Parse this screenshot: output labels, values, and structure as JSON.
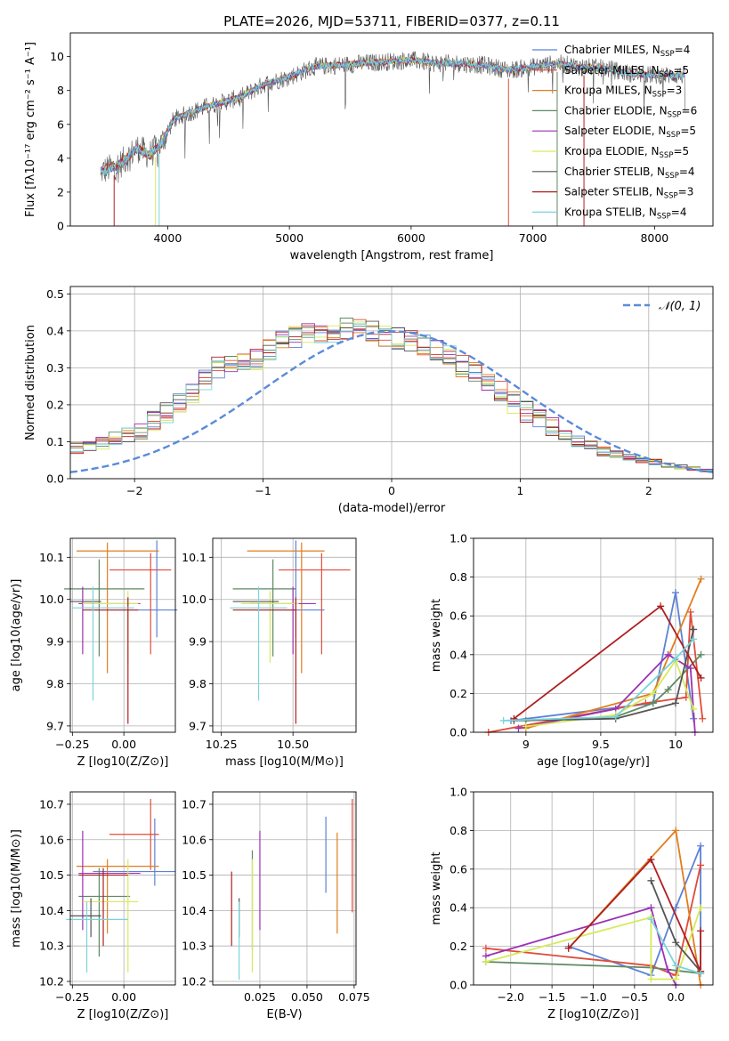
{
  "figure": {
    "title": "PLATE=2026, MJD=53711, FIBERID=0377, z=0.11"
  },
  "chart_data": [
    {
      "id": "spectrum",
      "type": "line",
      "xlabel": "wavelength [Angstrom, rest frame]",
      "ylabel": "Flux [fλ10⁻¹⁷ erg cm⁻² s⁻¹ A⁻¹]",
      "xlim": [
        3200,
        8480
      ],
      "ylim": [
        0,
        11.4
      ],
      "xticks": [
        4000,
        5000,
        6000,
        7000,
        8000
      ],
      "yticks": [
        0,
        2,
        4,
        6,
        8,
        10
      ],
      "grid": false,
      "legend_position": "top-right",
      "spectrum_envelope": {
        "x": [
          3450,
          3600,
          3750,
          3850,
          3950,
          4050,
          4150,
          4300,
          4450,
          4600,
          4800,
          5000,
          5200,
          5400,
          5600,
          5800,
          6000,
          6200,
          6400,
          6600,
          6800,
          7000,
          7200,
          7400,
          7600,
          7800,
          8000,
          8250
        ],
        "y": [
          3.2,
          3.6,
          4.6,
          4.2,
          4.9,
          6.3,
          6.6,
          7.0,
          7.3,
          7.6,
          8.4,
          8.8,
          9.4,
          9.5,
          9.6,
          9.7,
          9.8,
          9.6,
          9.6,
          9.5,
          9.2,
          9.4,
          9.6,
          9.4,
          9.3,
          9.0,
          8.9,
          8.9
        ]
      },
      "series": [
        {
          "name": "Chabrier MILES, N_SSP=4",
          "label_main": "Chabrier MILES, N",
          "label_sub": "SSP",
          "label_tail": "=4",
          "color": "#5d81d6"
        },
        {
          "name": "Salpeter MILES, N_SSP=5",
          "label_main": "Salpeter MILES, N",
          "label_sub": "SSP",
          "label_tail": "=5",
          "color": "#e04c3a"
        },
        {
          "name": "Kroupa MILES, N_SSP=3",
          "label_main": "Kroupa MILES, N",
          "label_sub": "SSP",
          "label_tail": "=3",
          "color": "#e07e1e"
        },
        {
          "name": "Chabrier ELODIE, N_SSP=6",
          "label_main": "Chabrier ELODIE, N",
          "label_sub": "SSP",
          "label_tail": "=6",
          "color": "#5e8a63"
        },
        {
          "name": "Salpeter ELODIE, N_SSP=5",
          "label_main": "Salpeter ELODIE, N",
          "label_sub": "SSP",
          "label_tail": "=5",
          "color": "#9b32b4"
        },
        {
          "name": "Kroupa ELODIE, N_SSP=5",
          "label_main": "Kroupa ELODIE, N",
          "label_sub": "SSP",
          "label_tail": "=5",
          "color": "#d6ea5a"
        },
        {
          "name": "Chabrier STELIB, N_SSP=4",
          "label_main": "Chabrier STELIB, N",
          "label_sub": "SSP",
          "label_tail": "=4",
          "color": "#555555"
        },
        {
          "name": "Salpeter STELIB, N_SSP=3",
          "label_main": "Salpeter STELIB, N",
          "label_sub": "SSP",
          "label_tail": "=3",
          "color": "#b01e20"
        },
        {
          "name": "Kroupa STELIB, N_SSP=4",
          "label_main": "Kroupa STELIB, N",
          "label_sub": "SSP",
          "label_tail": "=4",
          "color": "#79d4da"
        }
      ]
    },
    {
      "id": "residuals",
      "type": "line",
      "xlabel": "(data-model)/error",
      "ylabel": "Normed distribution",
      "xlim": [
        -2.5,
        2.5
      ],
      "ylim": [
        0,
        0.52
      ],
      "xticks": [
        -2,
        -1,
        0,
        1,
        2
      ],
      "yticks": [
        0.0,
        0.1,
        0.2,
        0.3,
        0.4,
        0.5
      ],
      "grid": true,
      "legend_position": "top-right",
      "gaussian_label": "𝒩(0, 1)",
      "gaussian_color": "#5b8bd9",
      "bin_width": 0.1,
      "base_histogram": [
        0.015,
        0.02,
        0.025,
        0.03,
        0.035,
        0.045,
        0.05,
        0.058,
        0.065,
        0.075,
        0.082,
        0.088,
        0.097,
        0.11,
        0.12,
        0.13,
        0.158,
        0.18,
        0.21,
        0.235,
        0.27,
        0.3,
        0.312,
        0.315,
        0.325,
        0.35,
        0.37,
        0.383,
        0.39,
        0.395,
        0.398,
        0.405,
        0.41,
        0.4,
        0.385,
        0.38,
        0.372,
        0.36,
        0.345,
        0.33,
        0.305,
        0.29,
        0.26,
        0.235,
        0.205,
        0.18,
        0.162,
        0.14,
        0.12,
        0.105,
        0.088,
        0.075,
        0.065,
        0.058,
        0.05,
        0.045,
        0.038,
        0.032,
        0.028,
        0.022,
        0.02,
        0.018,
        0.016,
        0.015,
        0.014,
        0.013,
        0.012,
        0.012,
        0.011,
        0.01
      ]
    },
    {
      "id": "age-vs-Z",
      "type": "scatter",
      "xlabel": "Z [log10(Z/Z⊙)]",
      "ylabel": "age  [log10(age/yr)]",
      "xlim": [
        -0.26,
        0.25
      ],
      "ylim": [
        9.685,
        10.145
      ],
      "xticks": [
        -0.25,
        0.0
      ],
      "xticklabels": [
        "−0.25",
        "0.00"
      ],
      "yticks": [
        9.7,
        9.8,
        9.9,
        10.0,
        10.1
      ],
      "grid": true,
      "points": [
        {
          "series": 0,
          "x": 0.16,
          "y": 9.975,
          "xerr": [
            0.3,
            0.1
          ],
          "yerr": [
            0.065,
            0.165
          ]
        },
        {
          "series": 1,
          "x": 0.13,
          "y": 10.07,
          "xerr": [
            0.2,
            0.1
          ],
          "yerr": [
            0.2,
            0.04
          ]
        },
        {
          "series": 2,
          "x": -0.08,
          "y": 10.115,
          "xerr": [
            0.15,
            0.25
          ],
          "yerr": [
            0.29,
            0.02
          ]
        },
        {
          "series": 3,
          "x": -0.12,
          "y": 10.025,
          "xerr": [
            0.17,
            0.22
          ],
          "yerr": [
            0.16,
            0.07
          ]
        },
        {
          "series": 4,
          "x": -0.2,
          "y": 9.99,
          "xerr": [
            0.02,
            0.28
          ],
          "yerr": [
            0.12,
            0.04
          ]
        },
        {
          "series": 5,
          "x": 0.02,
          "y": 9.99,
          "xerr": [
            0.22,
            0.05
          ],
          "yerr": [
            0.14,
            0.03
          ]
        },
        {
          "series": 6,
          "x": -0.16,
          "y": 9.995,
          "xerr": [
            0.1,
            0.05
          ],
          "yerr": [
            0.0,
            0.0
          ]
        },
        {
          "series": 7,
          "x": 0.02,
          "y": 9.975,
          "xerr": [
            0.22,
            0.05
          ],
          "yerr": [
            0.27,
            0.03
          ]
        },
        {
          "series": 8,
          "x": -0.15,
          "y": 9.98,
          "xerr": [
            0.1,
            0.2
          ],
          "yerr": [
            0.22,
            0.05
          ]
        }
      ]
    },
    {
      "id": "age-vs-mass",
      "type": "scatter",
      "xlabel": "mass [log10(M/M⊙)]",
      "ylabel": "",
      "xlim": [
        10.22,
        10.72
      ],
      "ylim": [
        9.685,
        10.145
      ],
      "xticks": [
        10.25,
        10.5
      ],
      "xticklabels": [
        "10.25",
        "10.50"
      ],
      "yticks": [
        9.7,
        9.8,
        9.9,
        10.0,
        10.1
      ],
      "grid": true,
      "points": [
        {
          "series": 0,
          "x": 10.51,
          "y": 9.975,
          "xerr": [
            0.14,
            0.1
          ],
          "yerr": [
            0.065,
            0.165
          ]
        },
        {
          "series": 1,
          "x": 10.6,
          "y": 10.07,
          "xerr": [
            0.15,
            0.1
          ],
          "yerr": [
            0.2,
            0.04
          ]
        },
        {
          "series": 2,
          "x": 10.53,
          "y": 10.115,
          "xerr": [
            0.19,
            0.08
          ],
          "yerr": [
            0.29,
            0.02
          ]
        },
        {
          "series": 3,
          "x": 10.43,
          "y": 10.025,
          "xerr": [
            0.14,
            0.08
          ],
          "yerr": [
            0.16,
            0.07
          ]
        },
        {
          "series": 4,
          "x": 10.5,
          "y": 9.99,
          "xerr": [
            0.15,
            0.08
          ],
          "yerr": [
            0.12,
            0.04
          ]
        },
        {
          "series": 5,
          "x": 10.42,
          "y": 9.99,
          "xerr": [
            0.1,
            0.1
          ],
          "yerr": [
            0.14,
            0.03
          ]
        },
        {
          "series": 6,
          "x": 10.37,
          "y": 9.995,
          "xerr": [
            0.08,
            0.08
          ],
          "yerr": [
            0.0,
            0.0
          ]
        },
        {
          "series": 7,
          "x": 10.51,
          "y": 9.975,
          "xerr": [
            0.22,
            0.0
          ],
          "yerr": [
            0.27,
            0.03
          ]
        },
        {
          "series": 8,
          "x": 10.38,
          "y": 9.98,
          "xerr": [
            0.1,
            0.1
          ],
          "yerr": [
            0.22,
            0.05
          ]
        }
      ]
    },
    {
      "id": "mass-weight-vs-age",
      "type": "line",
      "xlabel": "age  [log10(age/yr)]",
      "ylabel": "mass weight",
      "xlim": [
        8.65,
        10.25
      ],
      "ylim": [
        0,
        1.0
      ],
      "xticks": [
        9.0,
        9.5,
        10.0
      ],
      "yticks": [
        0.0,
        0.2,
        0.4,
        0.6,
        0.8,
        1.0
      ],
      "grid": true,
      "series_points": [
        {
          "series": 0,
          "x": [
            8.9,
            9.85,
            10.0,
            10.12
          ],
          "y": [
            0.06,
            0.15,
            0.72,
            0.07
          ]
        },
        {
          "series": 1,
          "x": [
            8.75,
            9.8,
            10.07,
            10.1,
            10.18
          ],
          "y": [
            0.0,
            0.15,
            0.18,
            0.62,
            0.07
          ]
        },
        {
          "series": 2,
          "x": [
            9.0,
            9.85,
            10.17
          ],
          "y": [
            0.02,
            0.2,
            0.79
          ]
        },
        {
          "series": 3,
          "x": [
            9.0,
            9.6,
            9.85,
            9.95,
            10.17
          ],
          "y": [
            0.06,
            0.08,
            0.15,
            0.22,
            0.4
          ]
        },
        {
          "series": 4,
          "x": [
            8.95,
            9.6,
            9.95,
            10.1,
            10.13
          ],
          "y": [
            0.02,
            0.12,
            0.4,
            0.33,
            0.0
          ]
        },
        {
          "series": 5,
          "x": [
            9.0,
            9.6,
            9.85,
            10.0,
            10.12
          ],
          "y": [
            0.03,
            0.09,
            0.2,
            0.37,
            0.12
          ]
        },
        {
          "series": 6,
          "x": [
            8.92,
            9.6,
            10.0,
            10.12
          ],
          "y": [
            0.06,
            0.07,
            0.15,
            0.53
          ]
        },
        {
          "series": 7,
          "x": [
            8.92,
            9.9,
            10.17
          ],
          "y": [
            0.07,
            0.65,
            0.28
          ]
        },
        {
          "series": 8,
          "x": [
            8.85,
            9.6,
            10.0,
            10.12
          ],
          "y": [
            0.06,
            0.08,
            0.38,
            0.48
          ]
        }
      ]
    },
    {
      "id": "mass-vs-Z",
      "type": "scatter",
      "xlabel": "Z [log10(Z/Z⊙)]",
      "ylabel": "mass [log10(M/M⊙)]",
      "xlim": [
        -0.26,
        0.25
      ],
      "ylim": [
        10.19,
        10.735
      ],
      "xticks": [
        -0.25,
        0.0
      ],
      "xticklabels": [
        "−0.25",
        "0.00"
      ],
      "yticks": [
        10.2,
        10.3,
        10.4,
        10.5,
        10.6,
        10.7
      ],
      "grid": true,
      "points": [
        {
          "series": 0,
          "x": 0.15,
          "y": 10.51,
          "xerr": [
            0.3,
            0.1
          ],
          "yerr": [
            0.04,
            0.15
          ]
        },
        {
          "series": 1,
          "x": 0.13,
          "y": 10.615,
          "xerr": [
            0.2,
            0.04
          ],
          "yerr": [
            0.1,
            0.1
          ]
        },
        {
          "series": 2,
          "x": -0.08,
          "y": 10.525,
          "xerr": [
            0.15,
            0.25
          ],
          "yerr": [
            0.19,
            0.02
          ]
        },
        {
          "series": 3,
          "x": -0.12,
          "y": 10.44,
          "xerr": [
            0.1,
            0.15
          ],
          "yerr": [
            0.17,
            0.08
          ]
        },
        {
          "series": 4,
          "x": -0.2,
          "y": 10.505,
          "xerr": [
            0.02,
            0.28
          ],
          "yerr": [
            0.16,
            0.12
          ]
        },
        {
          "series": 5,
          "x": 0.02,
          "y": 10.425,
          "xerr": [
            0.22,
            0.05
          ],
          "yerr": [
            0.2,
            0.12
          ]
        },
        {
          "series": 6,
          "x": -0.16,
          "y": 10.385,
          "xerr": [
            0.1,
            0.05
          ],
          "yerr": [
            0.06,
            0.05
          ]
        },
        {
          "series": 7,
          "x": -0.1,
          "y": 10.5,
          "xerr": [
            0.12,
            0.12
          ],
          "yerr": [
            0.2,
            0.02
          ]
        },
        {
          "series": 8,
          "x": -0.18,
          "y": 10.375,
          "xerr": [
            0.1,
            0.2
          ],
          "yerr": [
            0.15,
            0.05
          ]
        }
      ]
    },
    {
      "id": "mass-vs-EBV",
      "type": "scatter",
      "xlabel": "E(B-V)",
      "ylabel": "",
      "xlim": [
        0.0,
        0.076
      ],
      "ylim": [
        10.19,
        10.735
      ],
      "xticks": [
        0.025,
        0.05,
        0.075
      ],
      "xticklabels": [
        "0.025",
        "0.050",
        "0.075"
      ],
      "yticks": [
        10.2,
        10.3,
        10.4,
        10.5,
        10.6,
        10.7
      ],
      "grid": true,
      "points": [
        {
          "series": 0,
          "x": 0.06,
          "y": 10.51,
          "yerr": [
            0.06,
            0.155
          ]
        },
        {
          "series": 1,
          "x": 0.074,
          "y": 10.615,
          "yerr": [
            0.22,
            0.1
          ]
        },
        {
          "series": 2,
          "x": 0.066,
          "y": 10.525,
          "yerr": [
            0.19,
            0.095
          ]
        },
        {
          "series": 3,
          "x": 0.021,
          "y": 10.44,
          "yerr": [
            0.15,
            0.13
          ]
        },
        {
          "series": 4,
          "x": 0.025,
          "y": 10.505,
          "yerr": [
            0.16,
            0.12
          ]
        },
        {
          "series": 5,
          "x": 0.021,
          "y": 10.425,
          "yerr": [
            0.2,
            0.12
          ]
        },
        {
          "series": 6,
          "x": 0.014,
          "y": 10.385,
          "yerr": [
            0.06,
            0.05
          ]
        },
        {
          "series": 7,
          "x": 0.01,
          "y": 10.5,
          "yerr": [
            0.2,
            0.01
          ]
        },
        {
          "series": 8,
          "x": 0.014,
          "y": 10.375,
          "yerr": [
            0.17,
            0.05
          ]
        }
      ]
    },
    {
      "id": "mass-weight-vs-Z",
      "type": "line",
      "xlabel": "Z [log10(Z/Z⊙)]",
      "ylabel": "mass weight",
      "xlim": [
        -2.45,
        0.45
      ],
      "ylim": [
        0,
        1.0
      ],
      "xticks": [
        -2.0,
        -1.5,
        -1.0,
        -0.5,
        0.0
      ],
      "xticklabels": [
        "−2.0",
        "−1.5",
        "−1.0",
        "−0.5",
        "0.0"
      ],
      "yticks": [
        0.0,
        0.2,
        0.4,
        0.6,
        0.8,
        1.0
      ],
      "grid": true,
      "series_points": [
        {
          "series": 0,
          "x": [
            -1.3,
            -0.3,
            0.0,
            0.3,
            0.3
          ],
          "y": [
            0.2,
            0.05,
            0.4,
            0.72,
            0.06
          ]
        },
        {
          "series": 1,
          "x": [
            -2.3,
            -0.3,
            0.0,
            0.3
          ],
          "y": [
            0.19,
            0.1,
            0.05,
            0.62
          ]
        },
        {
          "series": 2,
          "x": [
            -1.3,
            0.0,
            0.3
          ],
          "y": [
            0.19,
            0.8,
            0.0
          ]
        },
        {
          "series": 3,
          "x": [
            -2.3,
            -0.3,
            0.3
          ],
          "y": [
            0.12,
            0.09,
            0.06
          ]
        },
        {
          "series": 4,
          "x": [
            -2.3,
            -0.3,
            -0.1,
            0.0
          ],
          "y": [
            0.15,
            0.4,
            0.08,
            0.0
          ]
        },
        {
          "series": 5,
          "x": [
            -2.3,
            -0.3,
            -0.3,
            0.0,
            0.3
          ],
          "y": [
            0.12,
            0.35,
            0.03,
            0.03,
            0.4
          ]
        },
        {
          "series": 6,
          "x": [
            -0.3,
            0.0,
            0.3
          ],
          "y": [
            0.54,
            0.22,
            0.07
          ]
        },
        {
          "series": 7,
          "x": [
            -1.3,
            -0.3,
            0.3,
            0.3
          ],
          "y": [
            0.19,
            0.65,
            0.07,
            0.28
          ]
        },
        {
          "series": 8,
          "x": [
            -0.3,
            0.0,
            0.3
          ],
          "y": [
            0.34,
            0.1,
            0.06
          ]
        }
      ]
    }
  ]
}
